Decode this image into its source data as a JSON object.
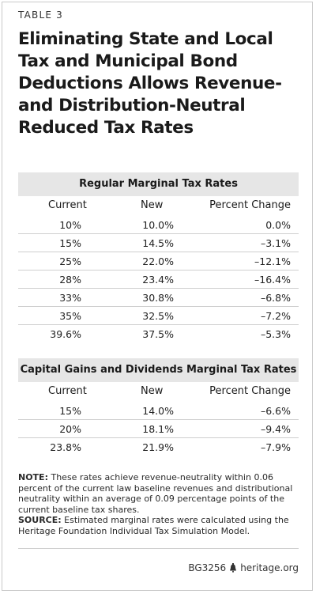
{
  "label": "TABLE 3",
  "title": "Eliminating State and Local Tax and Municipal Bond Deductions Allows Revenue- and Distribution-Neutral Reduced Tax Rates",
  "sections": [
    {
      "heading": "Regular Marginal Tax Rates",
      "columns": [
        "Current",
        "New",
        "Percent Change"
      ],
      "rows": [
        [
          "10%",
          "10.0%",
          "0.0%"
        ],
        [
          "15%",
          "14.5%",
          "–3.1%"
        ],
        [
          "25%",
          "22.0%",
          "–12.1%"
        ],
        [
          "28%",
          "23.4%",
          "–16.4%"
        ],
        [
          "33%",
          "30.8%",
          "–6.8%"
        ],
        [
          "35%",
          "32.5%",
          "–7.2%"
        ],
        [
          "39.6%",
          "37.5%",
          "–5.3%"
        ]
      ]
    },
    {
      "heading": "Capital Gains and Dividends Marginal Tax Rates",
      "columns": [
        "Current",
        "New",
        "Percent Change"
      ],
      "rows": [
        [
          "15%",
          "14.0%",
          "–6.6%"
        ],
        [
          "20%",
          "18.1%",
          "–9.4%"
        ],
        [
          "23.8%",
          "21.9%",
          "–7.9%"
        ]
      ]
    }
  ],
  "note_label": "NOTE:",
  "note_text": " These rates achieve revenue-neutrality within 0.06 percent of the current law baseline revenues and distributional neutrality within an average of 0.09 percentage points of the current baseline tax shares.",
  "source_label": "SOURCE:",
  "source_text": " Estimated marginal rates were calculated using the Heritage Foundation Individual Tax Simulation Model.",
  "footer_code": "BG3256",
  "footer_site": "heritage.org"
}
